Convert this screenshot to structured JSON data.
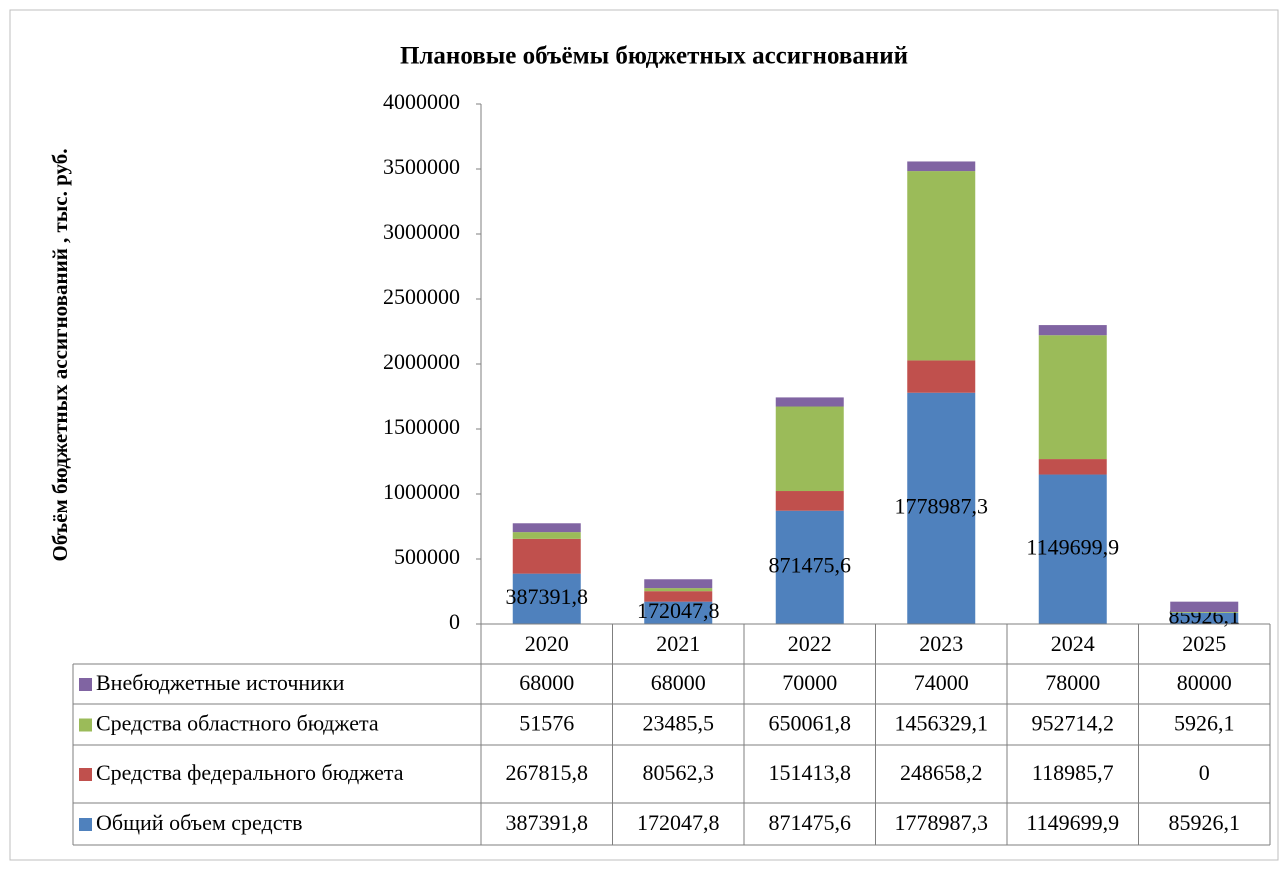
{
  "chart_data": {
    "type": "bar",
    "stacked": true,
    "title": "Плановые объёмы бюджетных ассигнований",
    "y_label": "Объём бюджетных ассигнований , тыс. руб.",
    "categories": [
      "2020",
      "2021",
      "2022",
      "2023",
      "2024",
      "2025"
    ],
    "ylim": [
      0,
      4000000
    ],
    "yticks": [
      0,
      500000,
      1000000,
      1500000,
      2000000,
      2500000,
      3000000,
      3500000,
      4000000
    ],
    "grid": false,
    "series": [
      {
        "name": "Общий объем средств",
        "color": "#4f81bd",
        "values": [
          387391.8,
          172047.8,
          871475.6,
          1778987.3,
          1149699.9,
          85926.1
        ],
        "value_labels": [
          "387391,8",
          "172047,8",
          "871475,6",
          "1778987,3",
          "1149699,9",
          "85926,1"
        ],
        "show_labels": true
      },
      {
        "name": "Средства федерального бюджета",
        "color": "#c0504d",
        "values": [
          267815.8,
          80562.3,
          151413.8,
          248658.2,
          118985.7,
          0
        ],
        "value_labels": [
          "267815,8",
          "80562,3",
          "151413,8",
          "248658,2",
          "118985,7",
          "0"
        ]
      },
      {
        "name": "Средства областного бюджета",
        "color": "#9bbb59",
        "values": [
          51576,
          23485.5,
          650061.8,
          1456329.1,
          952714.2,
          5926.1
        ],
        "value_labels": [
          "51576",
          "23485,5",
          "650061,8",
          "1456329,1",
          "952714,2",
          "5926,1"
        ]
      },
      {
        "name": "Внебюджетные источники",
        "color": "#8064a2",
        "values": [
          68000,
          68000,
          70000,
          74000,
          78000,
          80000
        ],
        "value_labels": [
          "68000",
          "68000",
          "70000",
          "74000",
          "78000",
          "80000"
        ]
      }
    ]
  }
}
